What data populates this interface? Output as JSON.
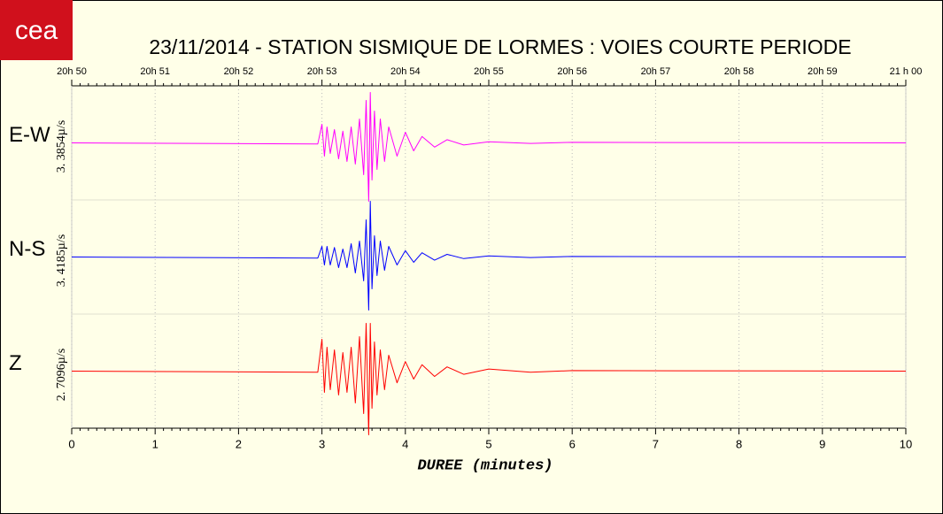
{
  "logo": "cea",
  "chart_data": {
    "type": "seismogram",
    "title": "23/11/2014  -  STATION SISMIQUE DE LORMES : VOIES COURTE PERIODE",
    "xlabel": "DUREE (minutes)",
    "xlim": [
      0,
      10
    ],
    "xticks": [
      0,
      1,
      2,
      3,
      4,
      5,
      6,
      7,
      8,
      9,
      10
    ],
    "top_ticks": [
      {
        "value": 0,
        "label": "20h 50"
      },
      {
        "value": 1,
        "label": "20h 51"
      },
      {
        "value": 2,
        "label": "20h 52"
      },
      {
        "value": 3,
        "label": "20h 53"
      },
      {
        "value": 4,
        "label": "20h 54"
      },
      {
        "value": 5,
        "label": "20h 55"
      },
      {
        "value": 6,
        "label": "20h 56"
      },
      {
        "value": 7,
        "label": "20h 57"
      },
      {
        "value": 8,
        "label": "20h 58"
      },
      {
        "value": 9,
        "label": "20h 59"
      },
      {
        "value": 10,
        "label": "21 h 00"
      }
    ],
    "grid": true,
    "x": [
      0,
      2.95,
      3.0,
      3.03,
      3.06,
      3.1,
      3.15,
      3.2,
      3.25,
      3.3,
      3.35,
      3.4,
      3.45,
      3.5,
      3.53,
      3.56,
      3.58,
      3.6,
      3.63,
      3.66,
      3.7,
      3.75,
      3.8,
      3.9,
      4.0,
      4.1,
      4.2,
      4.35,
      4.5,
      4.7,
      5.0,
      5.5,
      6.0,
      10
    ],
    "series": [
      {
        "name": "E-W",
        "scale_label": "3. 3854µ/s",
        "color": "#ff00ff",
        "values": [
          0,
          0.02,
          0.35,
          0.25,
          0.3,
          0.2,
          0.25,
          0.3,
          0.22,
          0.35,
          0.3,
          0.4,
          0.45,
          0.6,
          0.8,
          1.1,
          0.95,
          0.7,
          0.6,
          0.5,
          0.45,
          0.35,
          0.3,
          0.25,
          0.2,
          0.15,
          0.12,
          0.08,
          0.06,
          0.04,
          0.02,
          0.01,
          0.01,
          0
        ]
      },
      {
        "name": "N-S",
        "scale_label": "3. 4185µ/s",
        "color": "#0000ff",
        "values": [
          0,
          0.02,
          0.2,
          0.15,
          0.2,
          0.15,
          0.18,
          0.2,
          0.15,
          0.2,
          0.25,
          0.3,
          0.3,
          0.45,
          0.7,
          1.0,
          1.05,
          0.6,
          0.4,
          0.35,
          0.3,
          0.25,
          0.2,
          0.15,
          0.12,
          0.1,
          0.08,
          0.06,
          0.05,
          0.03,
          0.02,
          0.01,
          0.01,
          0
        ]
      },
      {
        "name": "Z",
        "scale_label": "2. 7096µ/s",
        "color": "#ff0000",
        "values": [
          0,
          0.02,
          0.6,
          0.4,
          0.45,
          0.35,
          0.4,
          0.45,
          0.35,
          0.4,
          0.45,
          0.6,
          0.65,
          0.8,
          0.9,
          1.2,
          0.9,
          0.7,
          0.55,
          0.45,
          0.4,
          0.35,
          0.3,
          0.22,
          0.18,
          0.15,
          0.12,
          0.1,
          0.08,
          0.06,
          0.04,
          0.02,
          0.01,
          0
        ]
      }
    ]
  }
}
